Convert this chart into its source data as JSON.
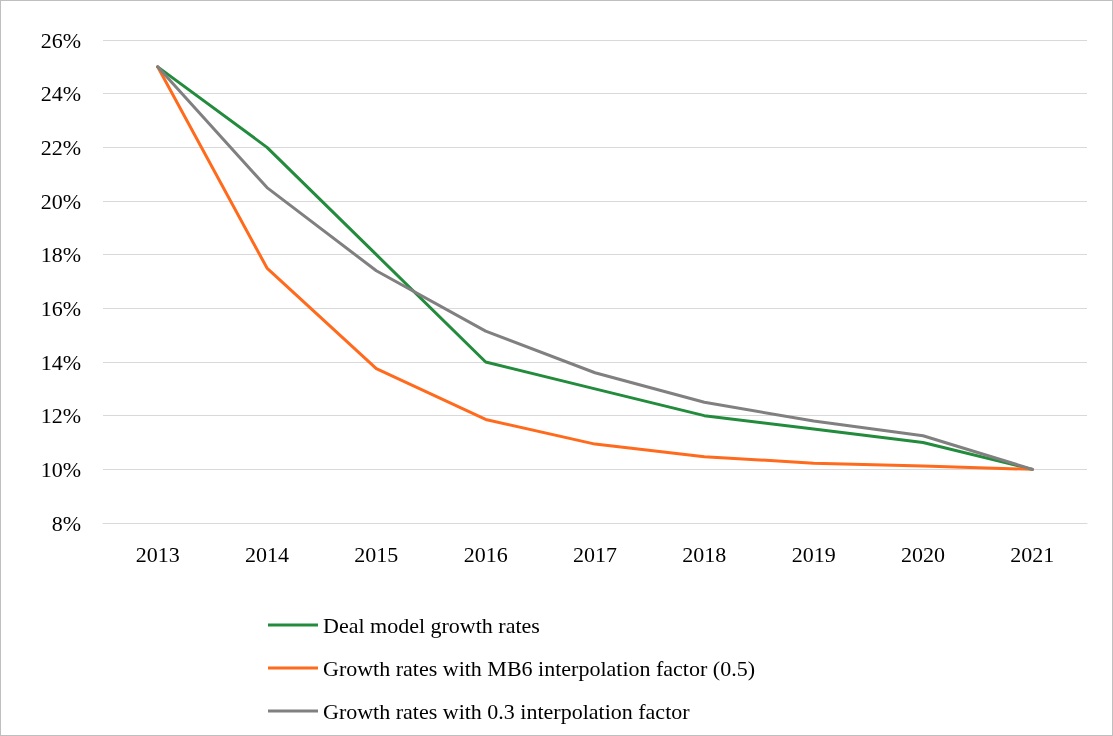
{
  "chart_data": {
    "type": "line",
    "categories": [
      "2013",
      "2014",
      "2015",
      "2016",
      "2017",
      "2018",
      "2019",
      "2020",
      "2021"
    ],
    "series": [
      {
        "name": "Deal model growth rates",
        "color": "#228b3c",
        "values": [
          25,
          22,
          18,
          14,
          13,
          12,
          11.5,
          11,
          10
        ]
      },
      {
        "name": "Growth rates with MB6 interpolation factor (0.5)",
        "color": "#ff6a1c",
        "values": [
          25,
          17.5,
          13.75,
          11.86,
          10.94,
          10.47,
          10.23,
          10.12,
          10
        ]
      },
      {
        "name": "Growth rates with 0.3 interpolation factor",
        "color": "#808080",
        "values": [
          25,
          20.5,
          17.4,
          15.15,
          13.6,
          12.5,
          11.8,
          11.25,
          10
        ]
      }
    ],
    "ylim": [
      8,
      26
    ],
    "yticks": [
      {
        "value": 8,
        "label": "8%"
      },
      {
        "value": 10,
        "label": "10%"
      },
      {
        "value": 12,
        "label": "12%"
      },
      {
        "value": 14,
        "label": "14%"
      },
      {
        "value": 16,
        "label": "16%"
      },
      {
        "value": 18,
        "label": "18%"
      },
      {
        "value": 20,
        "label": "20%"
      },
      {
        "value": 22,
        "label": "22%"
      },
      {
        "value": 24,
        "label": "24%"
      },
      {
        "value": 26,
        "label": "26%"
      }
    ],
    "grid": "y",
    "legend": "bottom",
    "marker": "none",
    "line_style": "solid"
  }
}
